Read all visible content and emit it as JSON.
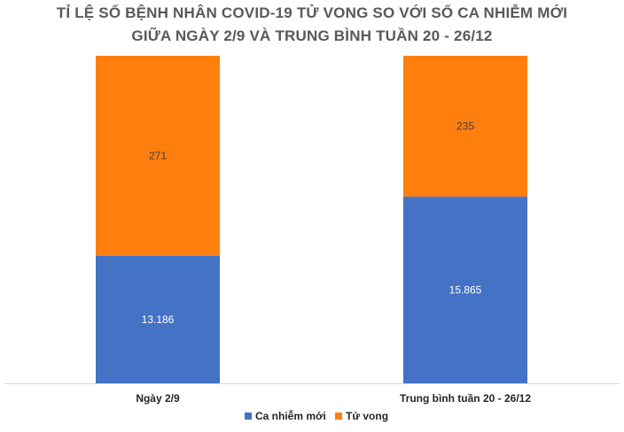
{
  "chart_data": {
    "type": "bar",
    "stacked": true,
    "normalized": true,
    "title": "TỈ LỆ SỐ BỆNH NHÂN COVID-19 TỬ VONG SO VỚI SỐ CA NHIỄM MỚI",
    "subtitle": "GIỮA NGÀY 2/9 VÀ TRUNG BÌNH TUẦN 20 - 26/12",
    "categories": [
      "Ngày 2/9",
      "Trung bình tuần 20 - 26/12"
    ],
    "series": [
      {
        "name": "Ca nhiễm mới",
        "values": [
          13186,
          15865
        ],
        "labels": [
          "13.186",
          "15.865"
        ],
        "color": "#4472C4",
        "label_color": "#ffffff"
      },
      {
        "name": "Tử vong",
        "values": [
          271,
          235
        ],
        "labels": [
          "271",
          "235"
        ],
        "color": "#FF7F0E",
        "label_color": "#404040"
      }
    ],
    "series_display_share": [
      [
        0.39,
        0.61
      ],
      [
        0.57,
        0.43
      ]
    ],
    "legend": "bottom",
    "grid": false
  }
}
